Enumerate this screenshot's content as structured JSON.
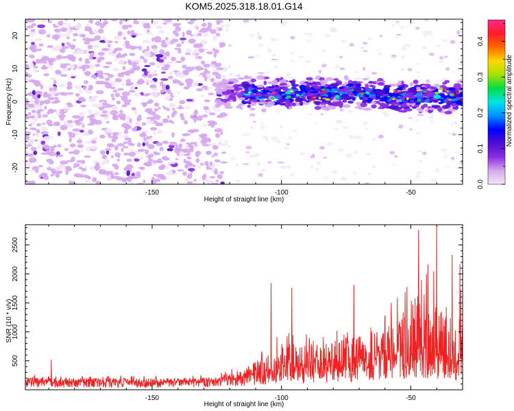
{
  "figure_title": "KOM5.2025.318.18.01.G14",
  "chart_data": [
    {
      "type": "heatmap",
      "name": "spectrogram",
      "title": "KOM5.2025.318.18.01.G14",
      "xlabel": "Height of straight line (km)",
      "ylabel": "Frequency (Hz)",
      "xlim": [
        -199,
        -30
      ],
      "ylim": [
        -25,
        25
      ],
      "xticks": [
        -150,
        -100,
        -50
      ],
      "xtick_labels": [
        "-150",
        "-100",
        "-50"
      ],
      "yticks": [
        -20,
        -10,
        0,
        10,
        20
      ],
      "ytick_labels": [
        "-20",
        "-10",
        "0",
        "10",
        "20"
      ],
      "colorbar": {
        "label": "Normalized spectral amplitude",
        "range": [
          0,
          0.46
        ],
        "ticks": [
          0.0,
          0.1,
          0.2,
          0.3,
          0.4
        ],
        "tick_labels": [
          "0.0",
          "0.1",
          "0.2",
          "0.3",
          "0.4"
        ],
        "colors": [
          "#f2e6f7",
          "#d6a8ee",
          "#8a2be2",
          "#4b0fd0",
          "#0000ff",
          "#0090ff",
          "#00e5e5",
          "#00dd44",
          "#a8e000",
          "#ffd800",
          "#ff6a00",
          "#ff1a2a",
          "#ff2a8a"
        ]
      },
      "regions": [
        {
          "description": "scattered noise",
          "x_range": [
            -199,
            -122
          ],
          "f_range": [
            -25,
            25
          ],
          "typical_amplitude": 0.03
        },
        {
          "description": "coherent echo band",
          "x_range": [
            -125,
            -30
          ],
          "f_center": 2,
          "f_halfwidth": 4,
          "typical_amplitude": 0.12,
          "peak_amplitude": 0.45
        },
        {
          "description": "weak residual clutter",
          "x_range": [
            -122,
            -30
          ],
          "f_range": [
            -25,
            25
          ],
          "typical_amplitude": 0.01
        }
      ],
      "grid": false
    },
    {
      "type": "line",
      "name": "snr",
      "xlabel": "Height of straight line (km)",
      "ylabel": "SNR (10 * v/v)",
      "xlim": [
        -199,
        -30
      ],
      "ylim": [
        0,
        2850
      ],
      "xticks": [
        -150,
        -100,
        -50
      ],
      "xtick_labels": [
        "-150",
        "-100",
        "-50"
      ],
      "yticks": [
        500,
        1000,
        1500,
        2000,
        2500
      ],
      "ytick_labels": [
        "500",
        "1000",
        "1500",
        "2000",
        "2500"
      ],
      "series": [
        {
          "name": "SNR",
          "color": "#ee2222",
          "envelope": [
            {
              "x": -199,
              "base": 130,
              "peak": 260
            },
            {
              "x": -150,
              "base": 130,
              "peak": 240
            },
            {
              "x": -125,
              "base": 150,
              "peak": 260
            },
            {
              "x": -115,
              "base": 220,
              "peak": 480
            },
            {
              "x": -105,
              "base": 300,
              "peak": 800
            },
            {
              "x": -100,
              "base": 380,
              "peak": 1100
            },
            {
              "x": -85,
              "base": 400,
              "peak": 1050
            },
            {
              "x": -70,
              "base": 450,
              "peak": 1300
            },
            {
              "x": -55,
              "base": 550,
              "peak": 1650
            },
            {
              "x": -48,
              "base": 650,
              "peak": 2350
            },
            {
              "x": -38,
              "base": 600,
              "peak": 2500
            },
            {
              "x": -33,
              "base": 350,
              "peak": 1400
            },
            {
              "x": -31,
              "base": 700,
              "peak": 2050
            }
          ],
          "spikes": [
            {
              "x": -189,
              "y": 520
            },
            {
              "x": -104,
              "y": 1840
            },
            {
              "x": -96,
              "y": 1760
            },
            {
              "x": -72,
              "y": 1810
            },
            {
              "x": -47,
              "y": 2760
            },
            {
              "x": -40,
              "y": 2840
            },
            {
              "x": -34,
              "y": 2330
            },
            {
              "x": -31,
              "y": 2170
            }
          ]
        }
      ],
      "grid": false
    }
  ]
}
